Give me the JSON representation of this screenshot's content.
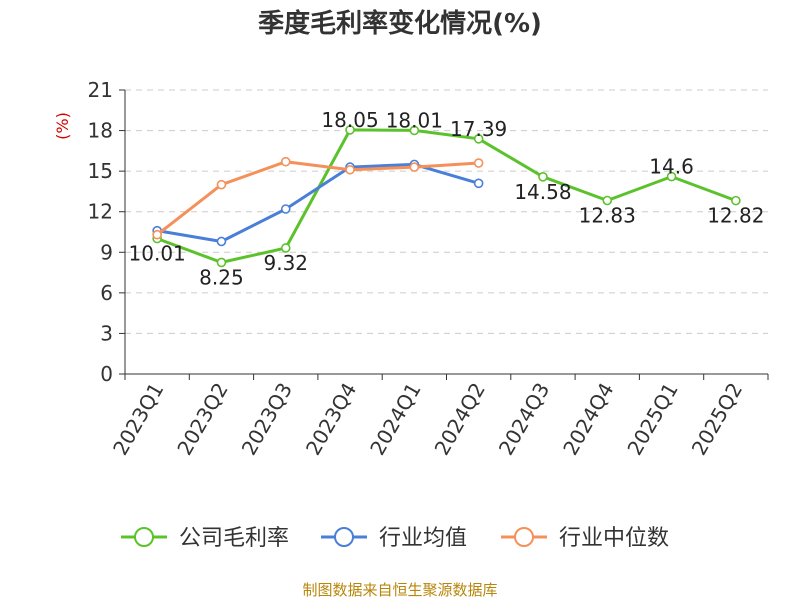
{
  "title": "季度毛利率变化情况(%)",
  "unit_label": "(%)",
  "source_text": "制图数据来自恒生聚源数据库",
  "chart_data": {
    "type": "line",
    "categories": [
      "2023Q1",
      "2023Q2",
      "2023Q3",
      "2023Q4",
      "2024Q1",
      "2024Q2",
      "2024Q3",
      "2024Q4",
      "2025Q1",
      "2025Q2"
    ],
    "ylim": [
      0,
      21
    ],
    "yticks": [
      0,
      3,
      6,
      9,
      12,
      15,
      18,
      21
    ],
    "grid": true,
    "legend_position": "bottom",
    "series": [
      {
        "name": "公司毛利率",
        "color": "#5cc22c",
        "values": [
          10.01,
          8.25,
          9.32,
          18.05,
          18.01,
          17.39,
          14.58,
          12.83,
          14.6,
          12.82
        ],
        "labels": [
          "10.01",
          "8.25",
          "9.32",
          "18.05",
          "18.01",
          "17.39",
          "14.58",
          "12.83",
          "14.6",
          "12.82"
        ]
      },
      {
        "name": "行业均值",
        "color": "#4a7fd8",
        "values": [
          10.6,
          9.8,
          12.2,
          15.3,
          15.5,
          14.1,
          null,
          null,
          null,
          null
        ]
      },
      {
        "name": "行业中位数",
        "color": "#f5905a",
        "values": [
          10.3,
          14.0,
          15.7,
          15.1,
          15.3,
          15.6,
          null,
          null,
          null,
          null
        ]
      }
    ]
  }
}
